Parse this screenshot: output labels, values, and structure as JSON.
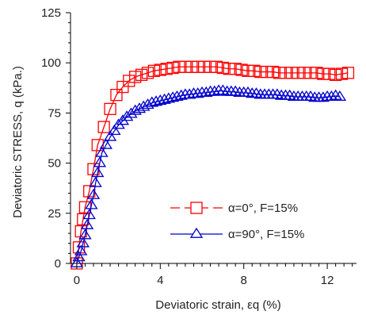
{
  "chart_data": {
    "type": "scatter",
    "title": "",
    "xlabel": "Deviatoric strain, εq (%)",
    "ylabel": "Deviatoric STRESS, q (kPa.)",
    "xlim": [
      -0.3,
      13.4
    ],
    "ylim": [
      0,
      125
    ],
    "x_ticks": [
      0,
      4,
      8,
      12
    ],
    "y_ticks": [
      0,
      25,
      50,
      75,
      100,
      125
    ],
    "x_tick_labels": [
      "0",
      "4",
      "8",
      "12"
    ],
    "y_tick_labels": [
      "0",
      "25",
      "50",
      "75",
      "100",
      "125"
    ],
    "grid": false,
    "legend_position": "center-right",
    "series": [
      {
        "name": "α=0°, F=15%",
        "color": "#ff0000",
        "marker": "square",
        "line_style": "solid",
        "x": [
          0.0,
          0.1,
          0.2,
          0.3,
          0.4,
          0.6,
          0.8,
          1.0,
          1.3,
          1.6,
          1.9,
          2.2,
          2.5,
          2.8,
          3.1,
          3.4,
          3.7,
          4.0,
          4.3,
          4.6,
          4.9,
          5.2,
          5.5,
          5.8,
          6.1,
          6.4,
          6.7,
          7.0,
          7.3,
          7.6,
          7.9,
          8.2,
          8.5,
          8.8,
          9.1,
          9.4,
          9.7,
          10.0,
          10.3,
          10.6,
          10.9,
          11.2,
          11.5,
          11.8,
          12.1,
          12.4,
          12.7,
          13.0
        ],
        "y": [
          0,
          8,
          16,
          22,
          28,
          36,
          47,
          59,
          68,
          77,
          84,
          88,
          91,
          93,
          94,
          95,
          96,
          96.5,
          97,
          97.5,
          98,
          98,
          98,
          98,
          98,
          98,
          98,
          97.5,
          97,
          97,
          96.5,
          96,
          96,
          95.5,
          95.5,
          95.5,
          95,
          95,
          95,
          95,
          95,
          95,
          95,
          94.5,
          94.5,
          94,
          94.5,
          95
        ]
      },
      {
        "name": "α=90°, F=15%",
        "color": "#0000cc",
        "marker": "triangle",
        "line_style": "solid",
        "x": [
          0.0,
          0.1,
          0.2,
          0.3,
          0.4,
          0.5,
          0.6,
          0.7,
          0.8,
          0.9,
          1.0,
          1.1,
          1.2,
          1.4,
          1.6,
          1.8,
          2.0,
          2.2,
          2.4,
          2.6,
          2.8,
          3.0,
          3.2,
          3.4,
          3.6,
          3.8,
          4.0,
          4.2,
          4.4,
          4.6,
          4.8,
          5.0,
          5.2,
          5.4,
          5.6,
          5.8,
          6.0,
          6.2,
          6.4,
          6.6,
          6.8,
          7.0,
          7.2,
          7.4,
          7.6,
          7.8,
          8.0,
          8.2,
          8.4,
          8.6,
          8.8,
          9.0,
          9.2,
          9.4,
          9.6,
          9.8,
          10.0,
          10.2,
          10.4,
          10.6,
          10.8,
          11.0,
          11.2,
          11.4,
          11.6,
          11.8,
          12.0,
          12.2,
          12.4,
          12.6
        ],
        "y": [
          0,
          3,
          6,
          10,
          14,
          19,
          24,
          29,
          34,
          40,
          45,
          50,
          55,
          59,
          63,
          66,
          69,
          71,
          73,
          74.5,
          76,
          77,
          78,
          79,
          80,
          80.5,
          81,
          81.5,
          82,
          82.5,
          83,
          83.5,
          84,
          84,
          84.5,
          84.5,
          85,
          85,
          85.5,
          85.5,
          86,
          86,
          85.5,
          85.5,
          85.5,
          85,
          85,
          85,
          84.5,
          84.5,
          84,
          84,
          84,
          84,
          84,
          83.5,
          83.5,
          83.5,
          83,
          83,
          83,
          83,
          83,
          82.5,
          82.5,
          82.5,
          83,
          83,
          83.5,
          83
        ]
      }
    ]
  }
}
